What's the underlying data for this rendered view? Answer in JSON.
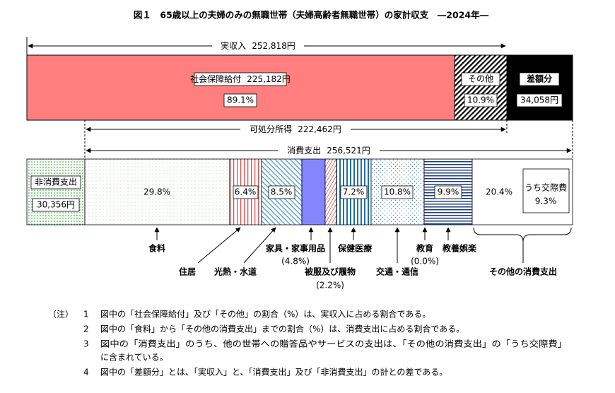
{
  "title": "図１　65歳以上の夫婦のみの無職世帯（夫婦高齢者無職世帯）の家計収支　―2024年―",
  "income": {
    "label": "実収入",
    "amount": "252,818円"
  },
  "top_segments": [
    {
      "label": "社会保障給付",
      "amount": "225,182円",
      "share": "89.1%"
    },
    {
      "label": "その他",
      "share": "10.9%"
    },
    {
      "label": "差額分",
      "amount": "34,058円"
    }
  ],
  "disposable": {
    "label": "可処分所得",
    "amount": "222,462円"
  },
  "consumption": {
    "label": "消費支出",
    "amount": "256,521円"
  },
  "non_consumption": {
    "label": "非消費支出",
    "amount": "30,356円"
  },
  "categories": [
    {
      "label": "食料",
      "share": "29.8%"
    },
    {
      "label": "住居",
      "share": "6.4%"
    },
    {
      "label": "光熱・水道",
      "share": "8.5%"
    },
    {
      "label": "家具・家事用品",
      "share": "(4.8%)"
    },
    {
      "label": "被服及び履物",
      "share": "(2.2%)"
    },
    {
      "label": "保健医療",
      "share": "7.2%"
    },
    {
      "label": "交通・通信",
      "share": "10.8%"
    },
    {
      "label": "教育",
      "share": "(0.0%)"
    },
    {
      "label": "教養娯楽",
      "share": "9.9%"
    },
    {
      "label": "その他の消費支出",
      "share": "20.4%",
      "sub": {
        "label": "うち交際費",
        "share": "9.3%"
      }
    }
  ],
  "notes": {
    "label": "（注）",
    "items": [
      {
        "number": "1",
        "lines": [
          "図中の「社会保障給付」及び「その他」の割合（%）は、実収入に占める割合である。"
        ]
      },
      {
        "number": "2",
        "lines": [
          "図中の「食料」から「その他の消費支出」までの割合（%）は、消費支出に占める割合である。"
        ]
      },
      {
        "number": "3",
        "lines": [
          "図中の「消費支出」のうち、他の世帯への贈答品やサービスの支出は、「その他の消費支出」の「うち交際費」",
          "に含まれている。"
        ]
      },
      {
        "number": "4",
        "lines": [
          "図中の「差額分」とは、「実収入」と、「消費支出」及び「非消費支出」の計との差である。"
        ]
      }
    ]
  }
}
